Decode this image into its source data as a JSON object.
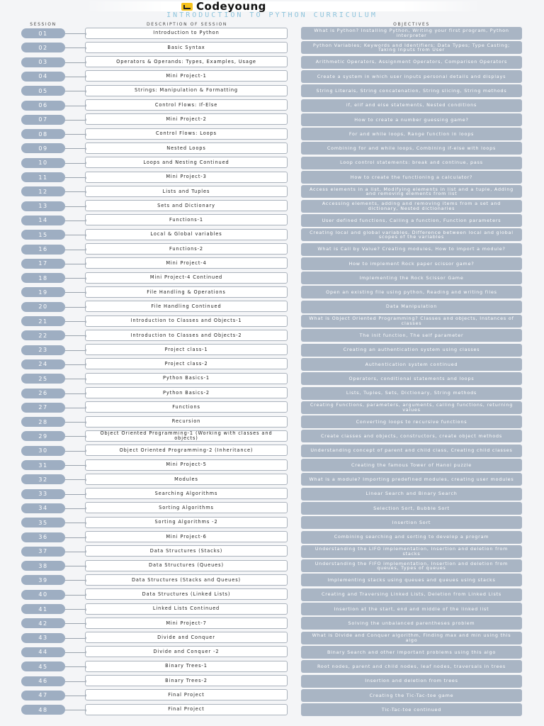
{
  "header": {
    "brand": "Codeyoung",
    "title": "INTRODUCTION TO PYTHON CURRICULUM",
    "brand_icon": "codeyoung-logo-icon",
    "accent_color": "#8ec4dc"
  },
  "columns": {
    "session": "SESSION",
    "description": "DESCRIPTION OF SESSION",
    "objectives": "OBJECTIVES"
  },
  "colors": {
    "pill": "#9eaec2",
    "objective_box": "#a9b5c4",
    "description_border": "#aab2bc"
  },
  "sessions": [
    {
      "num": "01",
      "desc": "Introduction to Python",
      "obj": "What is Python? Installing Python, Writing your first program, Python interpreter"
    },
    {
      "num": "02",
      "desc": "Basic Syntax",
      "obj": "Python Variables; Keywords and Identifiers; Data Types; Type Casting; Taking Inputs from User"
    },
    {
      "num": "03",
      "desc": "Operators & Operands: Types, Examples, Usage",
      "obj": "Arithmetic Operators, Assignment Operators, Comparison Operators"
    },
    {
      "num": "04",
      "desc": "Mini Project-1",
      "obj": "Create a system in which user inputs personal details and displays"
    },
    {
      "num": "05",
      "desc": "Strings: Manipulation & Formatting",
      "obj": "String Literals, String concatenation, String slicing, String methods"
    },
    {
      "num": "06",
      "desc": "Control Flows: If-Else",
      "obj": "if, elif and else statements, Nested conditions"
    },
    {
      "num": "07",
      "desc": "Mini Project-2",
      "obj": "How to create a number guessing game?"
    },
    {
      "num": "08",
      "desc": "Control Flows: Loops",
      "obj": "For and while loops, Range function in loops"
    },
    {
      "num": "09",
      "desc": "Nested Loops",
      "obj": "Combining for and while loops, Combining if-else with loops"
    },
    {
      "num": "10",
      "desc": "Loops and Nesting Continued",
      "obj": "Loop control statements: break and continue, pass"
    },
    {
      "num": "11",
      "desc": "Mini Project-3",
      "obj": "How to create the functioning a calculator?"
    },
    {
      "num": "12",
      "desc": "Lists and Tuples",
      "obj": "Access elements in a list, Modifying elements in list and a tuple, Adding and removing elements from list"
    },
    {
      "num": "13",
      "desc": "Sets and Dictionary",
      "obj": "Accessing elements, adding and removing items from a set and dictionary, Nested dictionaries"
    },
    {
      "num": "14",
      "desc": "Functions-1",
      "obj": "User defined functions, Calling a function, Function parameters"
    },
    {
      "num": "15",
      "desc": "Local & Global variables",
      "obj": "Creating local and global variables, Difference between local and global scopes of the variables"
    },
    {
      "num": "16",
      "desc": "Functions-2",
      "obj": "What is Call by Value? Creating modules, How to import a module?"
    },
    {
      "num": "17",
      "desc": "Mini Project-4",
      "obj": "How to implement Rock paper scissor game?"
    },
    {
      "num": "18",
      "desc": "Mini Project-4 Continued",
      "obj": "Implementing the Rock Scissor Game"
    },
    {
      "num": "19",
      "desc": "File Handling & Operations",
      "obj": "Open an existing file using python, Reading and writing files"
    },
    {
      "num": "20",
      "desc": "File Handling Continued",
      "obj": "Data Manipulation"
    },
    {
      "num": "21",
      "desc": "Introduction to Classes and Objects-1",
      "obj": "What is Object Oriented Programming? Classes and objects, Instances of classes"
    },
    {
      "num": "22",
      "desc": "Introduction to Classes and Objects-2",
      "obj": "The init function, The self parameter"
    },
    {
      "num": "23",
      "desc": "Project class-1",
      "obj": "Creating an authentication system using classes"
    },
    {
      "num": "24",
      "desc": "Project class-2",
      "obj": "Authentication system continued"
    },
    {
      "num": "25",
      "desc": "Python Basics-1",
      "obj": "Operators, conditional statements and loops"
    },
    {
      "num": "26",
      "desc": "Python Basics-2",
      "obj": "Lists, Tuples, Sets, Dictionary, String methods"
    },
    {
      "num": "27",
      "desc": "Functions",
      "obj": "Creating Functions, parameters, arguments, calling functions, returning values"
    },
    {
      "num": "28",
      "desc": "Recursion",
      "obj": "Converting loops to recursive functions"
    },
    {
      "num": "29",
      "desc": "Object Oriented Programming-1 (Working with classes and objects)",
      "obj": "Create classes and objects, constructors, create object methods"
    },
    {
      "num": "30",
      "desc": "Object Oriented Programming-2 (Inheritance)",
      "obj": "Understanding concept of parent and child class, Creating child classes"
    },
    {
      "num": "31",
      "desc": "Mini Project-5",
      "obj": "Creating the famous Tower of Hanoi puzzle"
    },
    {
      "num": "32",
      "desc": "Modules",
      "obj": "What is a module? Importing predefined modules, creating user modules"
    },
    {
      "num": "33",
      "desc": "Searching Algorithms",
      "obj": "Linear Search and Binary Search"
    },
    {
      "num": "34",
      "desc": "Sorting Algorithms",
      "obj": "Selection Sort, Bubble Sort"
    },
    {
      "num": "35",
      "desc": "Sorting Algorithms -2",
      "obj": "Insertion Sort"
    },
    {
      "num": "36",
      "desc": "Mini Project-6",
      "obj": "Combining searching and sorting to develop a program"
    },
    {
      "num": "37",
      "desc": "Data Structures (Stacks)",
      "obj": "Understanding the LIFO implementation, Insertion and deletion from stacks"
    },
    {
      "num": "38",
      "desc": "Data Structures (Queues)",
      "obj": "Understanding the FIFO implementation, Insertion and deletion from queues, Types of queues"
    },
    {
      "num": "39",
      "desc": "Data Structures (Stacks and Queues)",
      "obj": "Implementing stacks using queues and queues using stacks"
    },
    {
      "num": "40",
      "desc": "Data Structures (Linked Lists)",
      "obj": "Creating and Traversing Linked Lists, Deletion from Linked Lists"
    },
    {
      "num": "41",
      "desc": "Linked Lists Continued",
      "obj": "Insertion at the start, end and middle of the linked list"
    },
    {
      "num": "42",
      "desc": "Mini Project-7",
      "obj": "Solving the unbalanced parentheses problem"
    },
    {
      "num": "43",
      "desc": "Divide and Conquer",
      "obj": "What is Divide and Conquer algorithm, Finding max and min using this algo"
    },
    {
      "num": "44",
      "desc": "Divide and Conquer -2",
      "obj": "Binary Search and other important problems using this algo"
    },
    {
      "num": "45",
      "desc": "Binary Trees-1",
      "obj": "Root nodes, parent and child nodes, leaf nodes, traversals in trees"
    },
    {
      "num": "46",
      "desc": "Binary Trees-2",
      "obj": "Insertion and deletion from trees"
    },
    {
      "num": "47",
      "desc": "Final Project",
      "obj": "Creating the Tic-Tac-toe game"
    },
    {
      "num": "48",
      "desc": "Final Project",
      "obj": "Tic-Tac-toe continued"
    }
  ]
}
